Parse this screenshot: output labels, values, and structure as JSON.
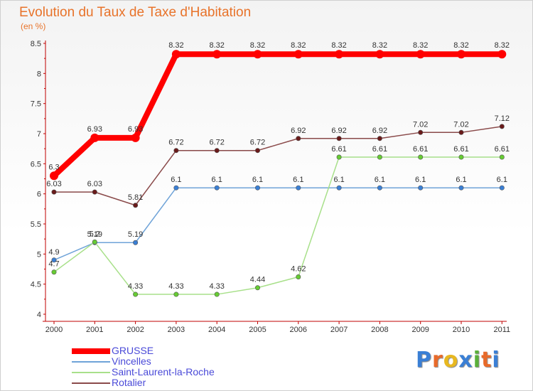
{
  "header": {
    "title": "Evolution du Taux de Taxe d'Habitation",
    "subtitle": "(en %)"
  },
  "brand": {
    "logo_text": "Proxiti",
    "logo_colors": [
      "#3a7fd5",
      "#e86a2a",
      "#e8b820",
      "#3a7fd5",
      "#5ab03a",
      "#e86a2a",
      "#3a7fd5"
    ]
  },
  "chart_data": {
    "type": "line",
    "title": "Evolution du Taux de Taxe d'Habitation",
    "subtitle": "(en %)",
    "xlabel": "",
    "ylabel": "",
    "categories": [
      "2000",
      "2001",
      "2002",
      "2003",
      "2004",
      "2005",
      "2006",
      "2007",
      "2008",
      "2009",
      "2010",
      "2011"
    ],
    "ylim": [
      4,
      8.5
    ],
    "yticks": [
      "4",
      "4.5",
      "5",
      "5.5",
      "6",
      "6.5",
      "7",
      "7.5",
      "8",
      "8.5"
    ],
    "grid": false,
    "legend_position": "bottom-left",
    "series": [
      {
        "name": "GRUSSE",
        "color": "#ff0000",
        "values": [
          6.3,
          6.93,
          6.93,
          8.32,
          8.32,
          8.32,
          8.32,
          8.32,
          8.32,
          8.32,
          8.32,
          8.32
        ],
        "labels": [
          "6.3",
          "6.93",
          "6.93",
          "8.32",
          "8.32",
          "8.32",
          "8.32",
          "8.32",
          "8.32",
          "8.32",
          "8.32",
          "8.32"
        ]
      },
      {
        "name": "Vincelles",
        "color": "#6fa3d8",
        "point_color": "#3a7fd5",
        "values": [
          4.9,
          5.19,
          5.19,
          6.1,
          6.1,
          6.1,
          6.1,
          6.1,
          6.1,
          6.1,
          6.1,
          6.1
        ],
        "labels": [
          "4.9",
          "5.19",
          "5.19",
          "6.1",
          "6.1",
          "6.1",
          "6.1",
          "6.1",
          "6.1",
          "6.1",
          "6.1",
          "6.1"
        ]
      },
      {
        "name": "Saint-Laurent-la-Roche",
        "color": "#a8e08a",
        "point_color": "#66cc33",
        "values": [
          4.7,
          5.2,
          4.33,
          4.33,
          4.33,
          4.44,
          4.62,
          6.61,
          6.61,
          6.61,
          6.61,
          6.61
        ],
        "labels": [
          "4.7",
          "5.2",
          "4.33",
          "4.33",
          "4.33",
          "4.44",
          "4.62",
          "6.61",
          "6.61",
          "6.61",
          "6.61",
          "6.61"
        ]
      },
      {
        "name": "Rotalier",
        "color": "#8a4a4a",
        "point_color": "#6a1a1a",
        "values": [
          6.03,
          6.03,
          5.81,
          6.72,
          6.72,
          6.72,
          6.92,
          6.92,
          6.92,
          7.02,
          7.02,
          7.12
        ],
        "labels": [
          "6.03",
          "6.03",
          "5.81",
          "6.72",
          "6.72",
          "6.72",
          "6.92",
          "6.92",
          "6.92",
          "7.02",
          "7.02",
          "7.12"
        ]
      }
    ]
  }
}
